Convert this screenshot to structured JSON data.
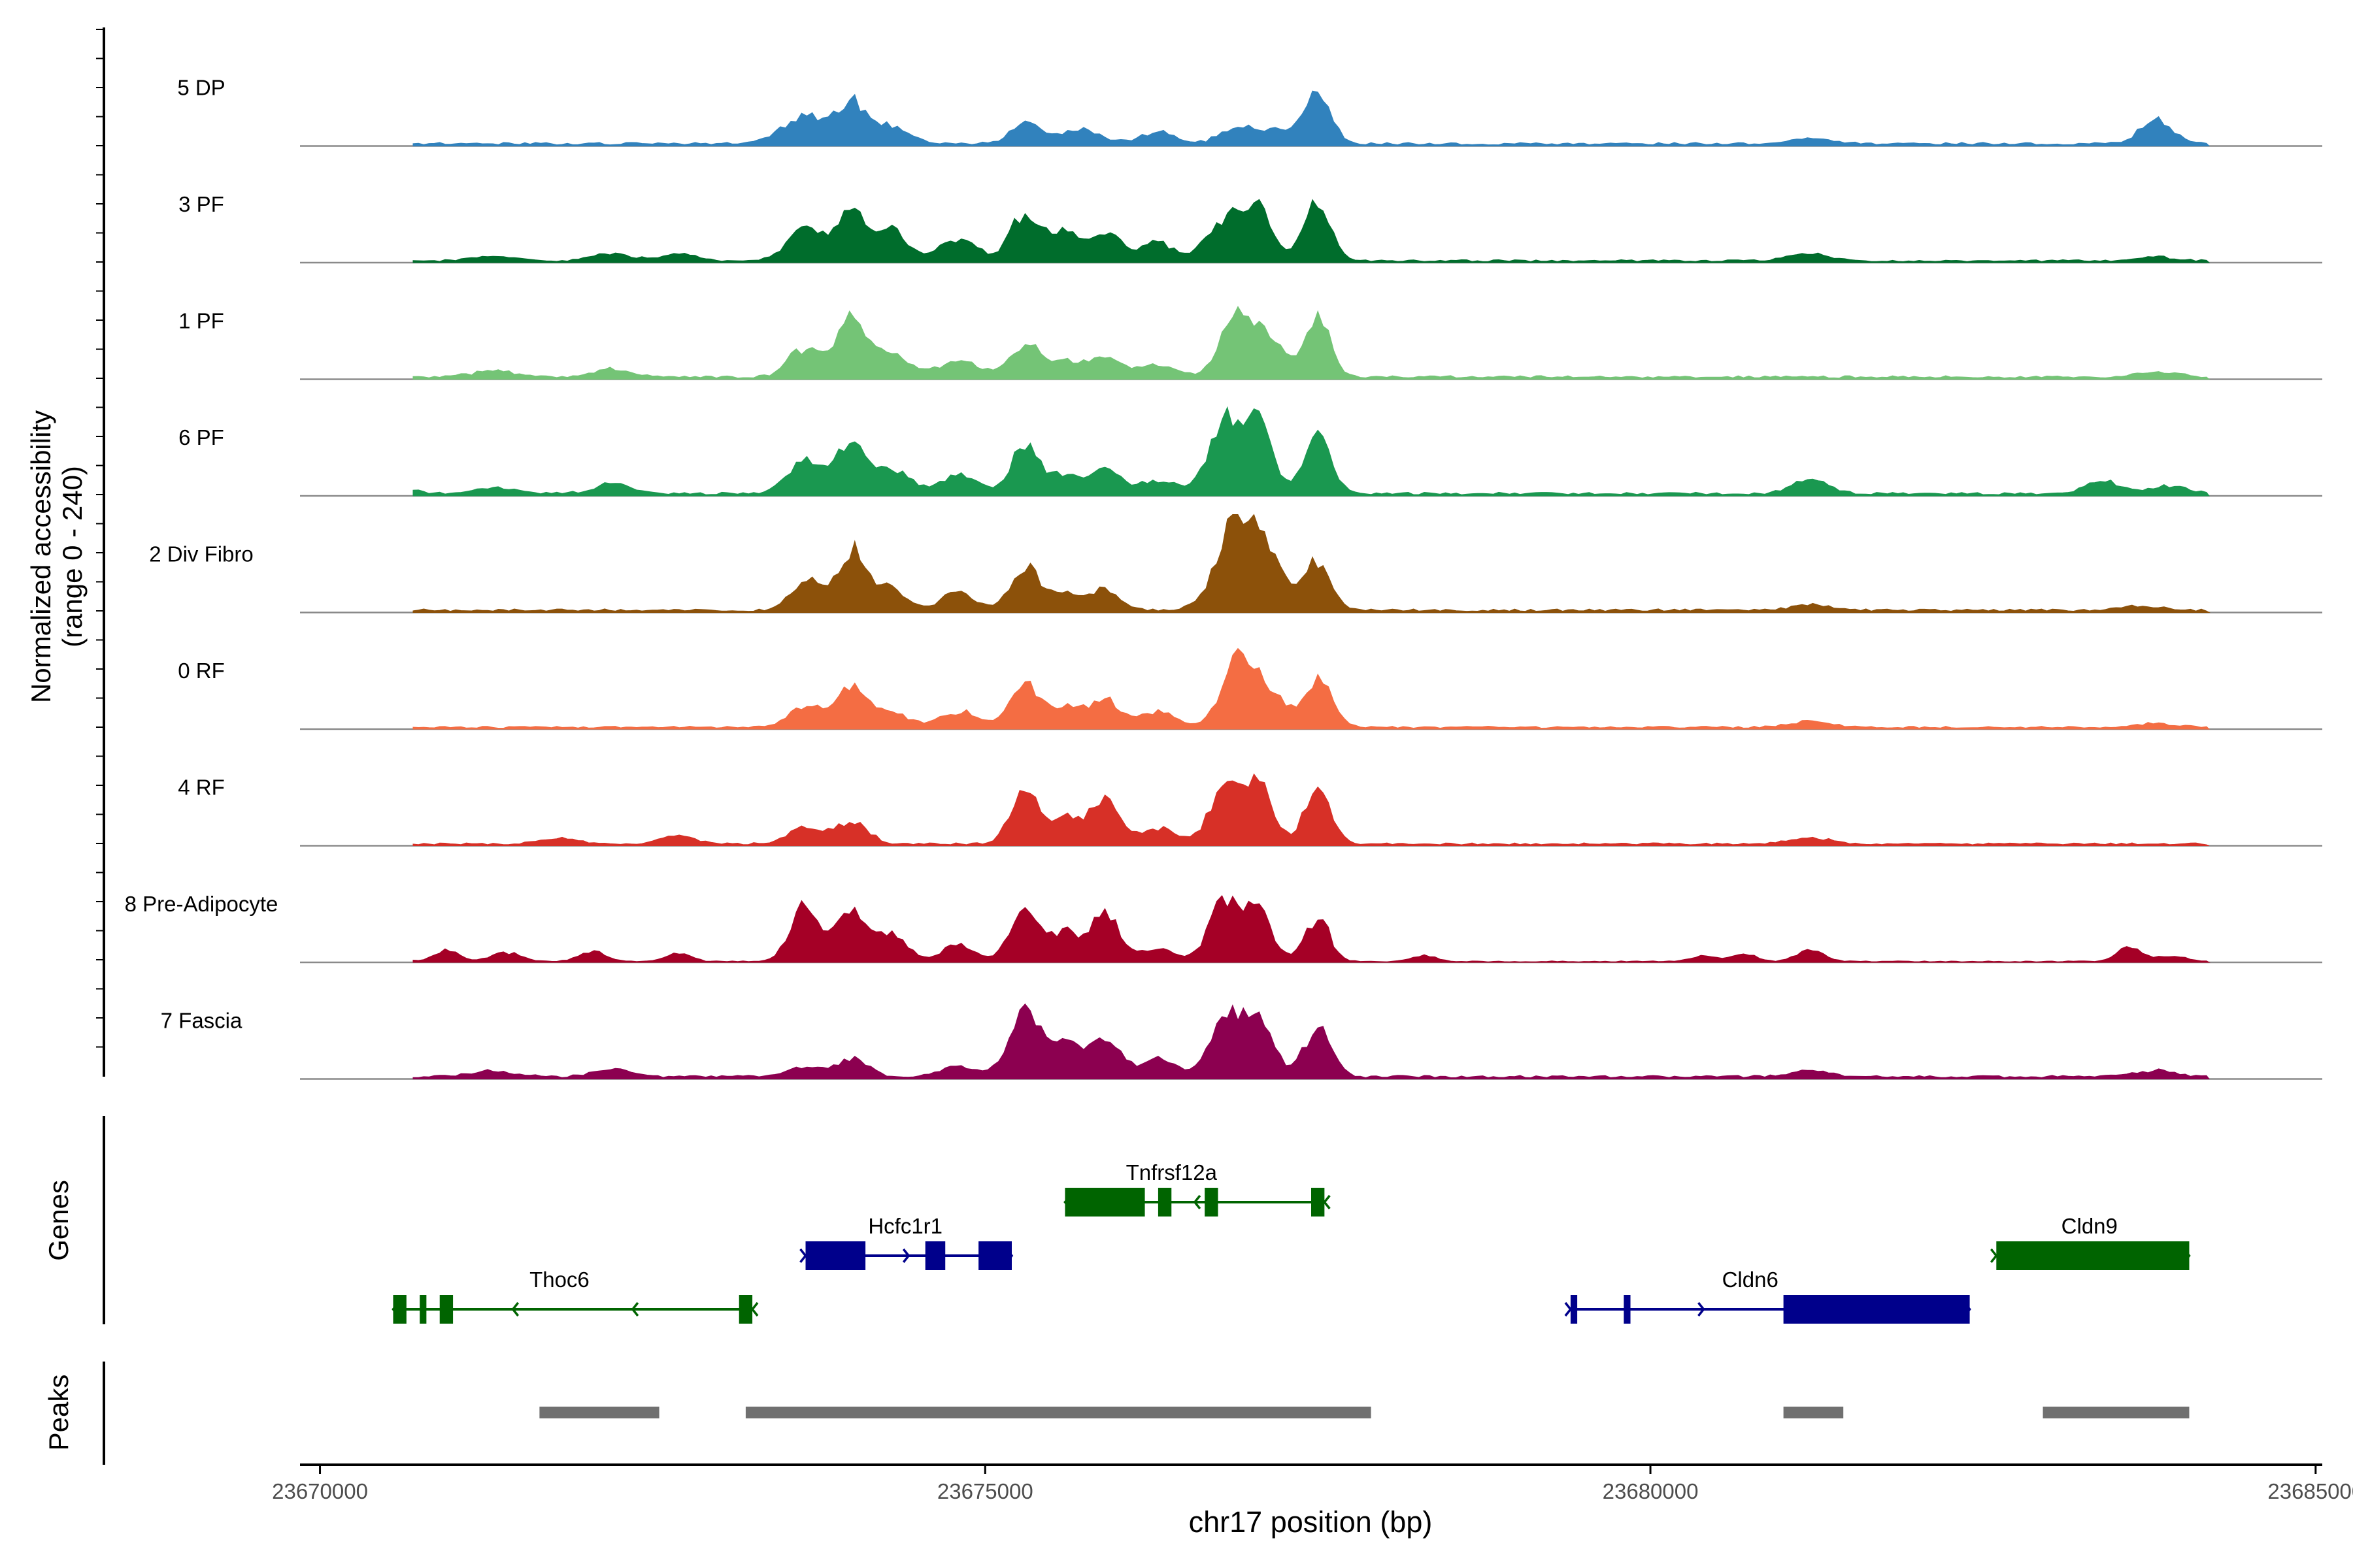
{
  "chart_data": {
    "type": "area",
    "title": "",
    "region_chrom": "chr17",
    "xlabel": "chr17 position (bp)",
    "xlim": [
      23669850,
      23685050
    ],
    "xticks": [
      23670000,
      23675000,
      23680000,
      23685000
    ],
    "xtick_labels": [
      "23670000",
      "23675000",
      "23680000",
      "23685000"
    ],
    "ylabel_line1": "Normalized accessibility",
    "ylabel_line2": "(range 0 - 240)",
    "ylim": [
      0,
      240
    ],
    "genes_label": "Genes",
    "peaks_label": "Peaks",
    "signal_range": [
      23670700,
      23684200
    ],
    "tracks": [
      {
        "name": "5 DP",
        "color": "#3182bd",
        "peaks": [
          [
            23673650,
            0.28,
            170
          ],
          [
            23674000,
            0.4,
            110
          ],
          [
            23674300,
            0.18,
            120
          ],
          [
            23675300,
            0.2,
            110
          ],
          [
            23675700,
            0.14,
            150
          ],
          [
            23676300,
            0.12,
            140
          ],
          [
            23676900,
            0.16,
            130
          ],
          [
            23677200,
            0.14,
            130
          ],
          [
            23677500,
            0.48,
            100
          ],
          [
            23681200,
            0.05,
            180
          ],
          [
            23683800,
            0.25,
            120
          ]
        ],
        "baseline": 0.025
      },
      {
        "name": "3 PF",
        "color": "#006d2c",
        "peaks": [
          [
            23671300,
            0.05,
            150
          ],
          [
            23672200,
            0.08,
            140
          ],
          [
            23672700,
            0.07,
            130
          ],
          [
            23673650,
            0.3,
            140
          ],
          [
            23674000,
            0.48,
            110
          ],
          [
            23674300,
            0.3,
            120
          ],
          [
            23674800,
            0.22,
            140
          ],
          [
            23675300,
            0.48,
            110
          ],
          [
            23675600,
            0.3,
            110
          ],
          [
            23675900,
            0.28,
            120
          ],
          [
            23676300,
            0.18,
            130
          ],
          [
            23676800,
            0.42,
            130
          ],
          [
            23677050,
            0.5,
            110
          ],
          [
            23677500,
            0.62,
            100
          ],
          [
            23681200,
            0.07,
            160
          ],
          [
            23683800,
            0.04,
            150
          ]
        ],
        "baseline": 0.02
      },
      {
        "name": "1 PF",
        "color": "#74c476",
        "peaks": [
          [
            23671300,
            0.06,
            160
          ],
          [
            23672200,
            0.08,
            140
          ],
          [
            23673650,
            0.3,
            120
          ],
          [
            23674000,
            0.58,
            110
          ],
          [
            23674300,
            0.22,
            140
          ],
          [
            23674800,
            0.16,
            150
          ],
          [
            23675300,
            0.32,
            120
          ],
          [
            23675600,
            0.14,
            120
          ],
          [
            23675900,
            0.2,
            120
          ],
          [
            23676300,
            0.12,
            140
          ],
          [
            23676900,
            0.7,
            120
          ],
          [
            23677150,
            0.36,
            110
          ],
          [
            23677500,
            0.62,
            90
          ],
          [
            23683800,
            0.05,
            160
          ]
        ],
        "baseline": 0.025
      },
      {
        "name": "6 PF",
        "color": "#1a9850",
        "peaks": [
          [
            23670500,
            0.08,
            160
          ],
          [
            23671300,
            0.06,
            160
          ],
          [
            23672200,
            0.1,
            140
          ],
          [
            23673650,
            0.35,
            130
          ],
          [
            23674000,
            0.52,
            110
          ],
          [
            23674300,
            0.25,
            130
          ],
          [
            23674800,
            0.18,
            140
          ],
          [
            23675300,
            0.46,
            110
          ],
          [
            23675600,
            0.18,
            110
          ],
          [
            23675900,
            0.22,
            120
          ],
          [
            23676300,
            0.14,
            140
          ],
          [
            23676800,
            0.7,
            120
          ],
          [
            23677050,
            0.72,
            110
          ],
          [
            23677500,
            0.58,
            100
          ],
          [
            23681200,
            0.14,
            130
          ],
          [
            23683400,
            0.12,
            130
          ],
          [
            23683900,
            0.08,
            140
          ]
        ],
        "baseline": 0.025
      },
      {
        "name": "2 Div Fibro",
        "color": "#8c510a",
        "peaks": [
          [
            23673650,
            0.3,
            110
          ],
          [
            23674000,
            0.62,
            110
          ],
          [
            23674300,
            0.22,
            110
          ],
          [
            23674800,
            0.18,
            120
          ],
          [
            23675300,
            0.42,
            110
          ],
          [
            23675600,
            0.18,
            110
          ],
          [
            23675900,
            0.2,
            120
          ],
          [
            23676900,
            0.98,
            150
          ],
          [
            23677150,
            0.4,
            110
          ],
          [
            23677500,
            0.5,
            100
          ],
          [
            23681200,
            0.06,
            130
          ],
          [
            23683700,
            0.04,
            160
          ]
        ],
        "baseline": 0.025
      },
      {
        "name": "0 RF",
        "color": "#f46d43",
        "peaks": [
          [
            23673650,
            0.22,
            120
          ],
          [
            23674000,
            0.44,
            110
          ],
          [
            23674300,
            0.16,
            120
          ],
          [
            23674800,
            0.16,
            140
          ],
          [
            23675300,
            0.44,
            110
          ],
          [
            23675600,
            0.22,
            110
          ],
          [
            23675900,
            0.3,
            110
          ],
          [
            23676300,
            0.16,
            130
          ],
          [
            23676900,
            0.66,
            120
          ],
          [
            23677150,
            0.34,
            110
          ],
          [
            23677500,
            0.52,
            100
          ],
          [
            23681200,
            0.06,
            150
          ],
          [
            23683800,
            0.04,
            150
          ]
        ],
        "baseline": 0.02
      },
      {
        "name": "4 RF",
        "color": "#d73027",
        "peaks": [
          [
            23671800,
            0.06,
            140
          ],
          [
            23672700,
            0.08,
            130
          ],
          [
            23673650,
            0.16,
            130
          ],
          [
            23674000,
            0.22,
            120
          ],
          [
            23675300,
            0.5,
            110
          ],
          [
            23675600,
            0.28,
            110
          ],
          [
            23675900,
            0.46,
            110
          ],
          [
            23676300,
            0.16,
            130
          ],
          [
            23676800,
            0.52,
            120
          ],
          [
            23677050,
            0.58,
            110
          ],
          [
            23677500,
            0.54,
            100
          ],
          [
            23681200,
            0.06,
            150
          ]
        ],
        "baseline": 0.02
      },
      {
        "name": "8 Pre-Adipocyte",
        "color": "#a50026",
        "peaks": [
          [
            23670550,
            0.1,
            70
          ],
          [
            23670950,
            0.12,
            90
          ],
          [
            23671400,
            0.09,
            110
          ],
          [
            23672050,
            0.1,
            100
          ],
          [
            23672700,
            0.09,
            90
          ],
          [
            23673650,
            0.55,
            110
          ],
          [
            23674000,
            0.56,
            110
          ],
          [
            23674300,
            0.28,
            110
          ],
          [
            23674800,
            0.18,
            120
          ],
          [
            23675300,
            0.52,
            110
          ],
          [
            23675600,
            0.28,
            110
          ],
          [
            23675900,
            0.48,
            110
          ],
          [
            23676300,
            0.14,
            120
          ],
          [
            23676800,
            0.58,
            120
          ],
          [
            23677050,
            0.48,
            110
          ],
          [
            23677500,
            0.44,
            90
          ],
          [
            23678300,
            0.06,
            90
          ],
          [
            23680400,
            0.06,
            90
          ],
          [
            23680700,
            0.08,
            90
          ],
          [
            23681200,
            0.12,
            100
          ],
          [
            23683600,
            0.14,
            90
          ],
          [
            23683900,
            0.06,
            110
          ]
        ],
        "baseline": 0.01
      },
      {
        "name": "7 Fascia",
        "color": "#8c0050",
        "peaks": [
          [
            23671300,
            0.06,
            160
          ],
          [
            23672200,
            0.08,
            140
          ],
          [
            23673650,
            0.1,
            130
          ],
          [
            23674000,
            0.18,
            120
          ],
          [
            23674800,
            0.1,
            140
          ],
          [
            23675300,
            0.66,
            120
          ],
          [
            23675600,
            0.32,
            110
          ],
          [
            23675900,
            0.42,
            110
          ],
          [
            23676300,
            0.18,
            130
          ],
          [
            23676800,
            0.56,
            120
          ],
          [
            23677050,
            0.62,
            110
          ],
          [
            23677500,
            0.5,
            100
          ],
          [
            23681200,
            0.06,
            140
          ],
          [
            23683800,
            0.06,
            150
          ]
        ],
        "baseline": 0.025
      }
    ],
    "genes": [
      {
        "name": "Thoc6",
        "strand": "-",
        "color": "#006400",
        "row": 2,
        "start": 23670550,
        "end": 23673250,
        "exons": [
          [
            23670550,
            23670650
          ],
          [
            23670750,
            23670800
          ],
          [
            23670900,
            23671000
          ],
          [
            23673150,
            23673250
          ]
        ],
        "label_pos": 23671800
      },
      {
        "name": "Hcfc1r1",
        "strand": "+",
        "color": "#00008b",
        "row": 1,
        "start": 23673650,
        "end": 23675200,
        "exons": [
          [
            23673650,
            23674100
          ],
          [
            23674550,
            23674700
          ],
          [
            23674950,
            23675200
          ]
        ],
        "label_pos": 23674400
      },
      {
        "name": "Tnfrsf12a",
        "strand": "-",
        "color": "#006400",
        "row": 0,
        "start": 23675600,
        "end": 23677550,
        "exons": [
          [
            23675600,
            23676200
          ],
          [
            23676300,
            23676400
          ],
          [
            23676650,
            23676750
          ],
          [
            23677450,
            23677550
          ]
        ],
        "label_pos": 23676400
      },
      {
        "name": "Cldn6",
        "strand": "+",
        "color": "#00008b",
        "row": 2,
        "start": 23679400,
        "end": 23682400,
        "exons": [
          [
            23679400,
            23679450
          ],
          [
            23679800,
            23679850
          ],
          [
            23681000,
            23682400
          ]
        ],
        "label_pos": 23680750
      },
      {
        "name": "Cldn9",
        "strand": "+",
        "color": "#006400",
        "row": 1,
        "start": 23682600,
        "end": 23684050,
        "exons": [
          [
            23682600,
            23684050
          ]
        ],
        "label_pos": 23683300
      }
    ],
    "peaks": [
      [
        23671650,
        23672550
      ],
      [
        23673200,
        23677900
      ],
      [
        23681000,
        23681450
      ],
      [
        23682950,
        23684050
      ]
    ]
  }
}
